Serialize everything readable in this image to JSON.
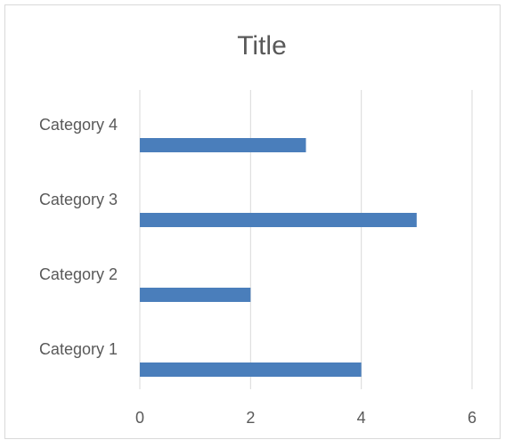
{
  "chart_data": {
    "type": "bar",
    "orientation": "horizontal",
    "title": "Title",
    "categories": [
      "Category 1",
      "Category 2",
      "Category 3",
      "Category 4"
    ],
    "series": [
      {
        "values": [
          4,
          2,
          5,
          3
        ]
      }
    ],
    "xlabel": "",
    "ylabel": "",
    "xlim": [
      0,
      6
    ],
    "x_ticks": [
      "0",
      "2",
      "4",
      "6"
    ],
    "grid": true,
    "legend": "none",
    "colors": {
      "bar": "#4a7ebb",
      "gridline": "#d9d9d9",
      "text": "#595959",
      "title": "#595959",
      "border": "#d9d9d9",
      "background": "#ffffff"
    }
  }
}
